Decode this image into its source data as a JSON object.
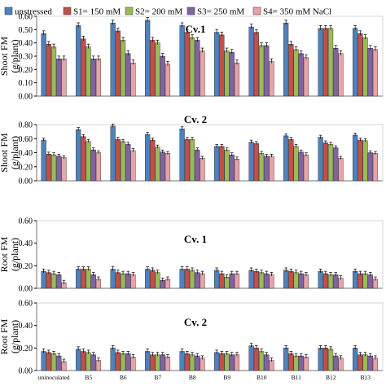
{
  "chart_data": [
    {
      "type": "bar",
      "title": "Cv.1",
      "ylabel": "Shoot FM",
      "ylabel_unit": "(g/plant)",
      "ylim": [
        0,
        0.6
      ],
      "yticks": [
        "0.00",
        "0.10",
        "0.20",
        "0.30",
        "0.40",
        "0.50",
        "0.60"
      ],
      "categories": [
        "uninoculated",
        "B5",
        "B6",
        "B7",
        "B8",
        "B9",
        "B10",
        "B11",
        "B12",
        "B13"
      ],
      "series": [
        {
          "name": "unstressed",
          "values": [
            0.47,
            0.53,
            0.55,
            0.57,
            0.53,
            0.48,
            0.52,
            0.55,
            0.51,
            0.51
          ]
        },
        {
          "name": "S1= 150 mM",
          "values": [
            0.39,
            0.43,
            0.49,
            0.42,
            0.48,
            0.46,
            0.48,
            0.39,
            0.51,
            0.47
          ]
        },
        {
          "name": "S2= 200 mM",
          "values": [
            0.37,
            0.37,
            0.42,
            0.4,
            0.44,
            0.34,
            0.38,
            0.35,
            0.51,
            0.44
          ]
        },
        {
          "name": "S3= 250 mM",
          "values": [
            0.28,
            0.28,
            0.32,
            0.3,
            0.42,
            0.33,
            0.38,
            0.32,
            0.36,
            0.36
          ]
        },
        {
          "name": "S4= 350 mM NaCl",
          "values": [
            0.28,
            0.28,
            0.25,
            0.24,
            0.34,
            0.25,
            0.26,
            0.29,
            0.32,
            0.35
          ]
        }
      ]
    },
    {
      "type": "bar",
      "title": "Cv. 2",
      "ylabel": "Shoot FM",
      "ylabel_unit": "(g/plant)",
      "ylim": [
        0,
        0.8
      ],
      "yticks": [
        "0.00",
        "0.20",
        "0.40",
        "0.60",
        "0.80"
      ],
      "categories": [
        "uninoculated",
        "B5",
        "B6",
        "B7",
        "B8",
        "B9",
        "B10",
        "B11",
        "B12",
        "B13"
      ],
      "series": [
        {
          "name": "unstressed",
          "values": [
            0.58,
            0.73,
            0.78,
            0.66,
            0.74,
            0.49,
            0.55,
            0.64,
            0.62,
            0.65
          ]
        },
        {
          "name": "S1= 150 mM",
          "values": [
            0.38,
            0.63,
            0.59,
            0.58,
            0.59,
            0.49,
            0.53,
            0.59,
            0.54,
            0.58
          ]
        },
        {
          "name": "S2= 200 mM",
          "values": [
            0.37,
            0.56,
            0.56,
            0.48,
            0.59,
            0.44,
            0.39,
            0.49,
            0.52,
            0.57
          ]
        },
        {
          "name": "S3= 250 mM",
          "values": [
            0.35,
            0.44,
            0.52,
            0.41,
            0.44,
            0.37,
            0.35,
            0.41,
            0.47,
            0.4
          ]
        },
        {
          "name": "S4= 350 mM NaCl",
          "values": [
            0.33,
            0.4,
            0.43,
            0.39,
            0.32,
            0.31,
            0.35,
            0.37,
            0.32,
            0.39
          ]
        }
      ]
    },
    {
      "type": "bar",
      "title": "Cv. 1",
      "ylabel": "Root FM",
      "ylabel_unit": "(g/plant)",
      "ylim": [
        0,
        0.6
      ],
      "yticks": [
        "0.00",
        "0.20",
        "0.40",
        "0.60"
      ],
      "categories": [
        "uninoculated",
        "B5",
        "B6",
        "B7",
        "B8",
        "B9",
        "B10",
        "B11",
        "B12",
        "B13"
      ],
      "series": [
        {
          "name": "unstressed",
          "values": [
            0.15,
            0.17,
            0.17,
            0.17,
            0.17,
            0.16,
            0.16,
            0.16,
            0.15,
            0.15
          ]
        },
        {
          "name": "S1= 150 mM",
          "values": [
            0.14,
            0.17,
            0.14,
            0.16,
            0.17,
            0.13,
            0.15,
            0.15,
            0.13,
            0.13
          ]
        },
        {
          "name": "S2= 200 mM",
          "values": [
            0.13,
            0.17,
            0.13,
            0.14,
            0.16,
            0.1,
            0.14,
            0.14,
            0.12,
            0.13
          ]
        },
        {
          "name": "S3= 250 mM",
          "values": [
            0.12,
            0.12,
            0.13,
            0.07,
            0.14,
            0.13,
            0.13,
            0.13,
            0.12,
            0.12
          ]
        },
        {
          "name": "S4= 350 mM NaCl",
          "values": [
            0.05,
            0.08,
            0.12,
            0.08,
            0.13,
            0.13,
            0.12,
            0.12,
            0.09,
            0.08
          ]
        }
      ]
    },
    {
      "type": "bar",
      "title": "Cv. 2",
      "ylabel": "Root FM",
      "ylabel_unit": "(g/plant)",
      "ylim": [
        0,
        0.6
      ],
      "yticks": [
        "0.00",
        "0.20",
        "0.40",
        "0.60"
      ],
      "categories": [
        "uninoculated",
        "B5",
        "B6",
        "B7",
        "B8",
        "B9",
        "B10",
        "B11",
        "B12",
        "B13"
      ],
      "series": [
        {
          "name": "unstressed",
          "values": [
            0.17,
            0.19,
            0.2,
            0.17,
            0.17,
            0.16,
            0.22,
            0.2,
            0.2,
            0.2
          ]
        },
        {
          "name": "S1= 150 mM",
          "values": [
            0.16,
            0.17,
            0.16,
            0.14,
            0.15,
            0.15,
            0.2,
            0.15,
            0.2,
            0.14
          ]
        },
        {
          "name": "S2= 200 mM",
          "values": [
            0.15,
            0.16,
            0.15,
            0.14,
            0.14,
            0.15,
            0.17,
            0.13,
            0.19,
            0.14
          ]
        },
        {
          "name": "S3= 250 mM",
          "values": [
            0.13,
            0.14,
            0.15,
            0.14,
            0.13,
            0.14,
            0.14,
            0.13,
            0.13,
            0.13
          ]
        },
        {
          "name": "S4= 350 mM NaCl",
          "values": [
            0.08,
            0.09,
            0.12,
            0.12,
            0.11,
            0.14,
            0.09,
            0.12,
            0.11,
            0.11
          ]
        }
      ]
    }
  ],
  "legend": {
    "placement": "top",
    "items": [
      {
        "label": "unstressed",
        "color": "#4f81bd"
      },
      {
        "label": "S1= 150 mM",
        "color": "#c0504d"
      },
      {
        "label": "S2= 200 mM",
        "color": "#9bbb59"
      },
      {
        "label": "S3= 250 mM",
        "color": "#8064a2"
      },
      {
        "label": "S4= 350 mM NaCl",
        "color": "#e6a3a8"
      }
    ]
  }
}
